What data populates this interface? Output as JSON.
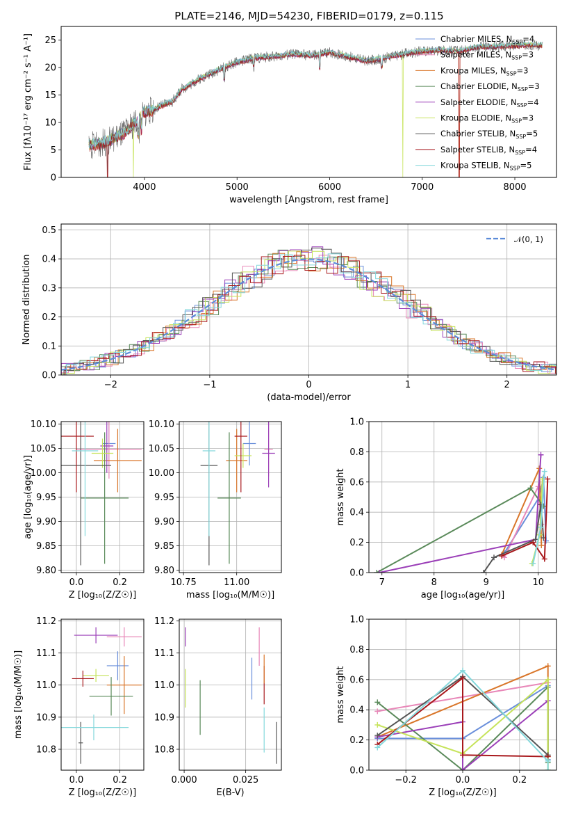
{
  "title": "PLATE=2146, MJD=54230, FIBERID=0179, z=0.115",
  "colors": {
    "Chabrier MILES": "#6a8fdb",
    "Salpeter MILES": "#e887b8",
    "Kroupa MILES": "#d9762a",
    "Chabrier ELODIE": "#5a8a5a",
    "Salpeter ELODIE": "#9b3fb8",
    "Kroupa ELODIE": "#c6e35a",
    "Chabrier STELIB": "#555555",
    "Salpeter STELIB": "#a8181c",
    "Kroupa STELIB": "#84d8dc"
  },
  "chart_data": [
    {
      "type": "line",
      "panel": "spectrum",
      "xlabel": "wavelength [Angstrom, rest frame]",
      "ylabel": "Flux [fλ10⁻¹⁷ erg cm⁻² s⁻¹ A⁻¹]",
      "xlim": [
        3100,
        8450
      ],
      "ylim": [
        0,
        27.5
      ],
      "xticks": [
        4000,
        5000,
        6000,
        7000,
        8000
      ],
      "yticks": [
        0,
        5,
        10,
        15,
        20,
        25
      ],
      "grid": false,
      "legend_position": "right",
      "envelope_x": [
        3400,
        3600,
        3800,
        4000,
        4100,
        4200,
        4300,
        4400,
        4500,
        4600,
        4800,
        5000,
        5200,
        5400,
        5600,
        5800,
        6000,
        6200,
        6400,
        6600,
        6800,
        7000,
        7200,
        7400,
        7600,
        7800,
        8000,
        8200,
        8300
      ],
      "envelope_y": [
        5.8,
        6.5,
        8.3,
        11.8,
        12.3,
        13.2,
        13.8,
        16.0,
        17.0,
        18.0,
        19.6,
        21.0,
        21.8,
        22.0,
        22.5,
        22.2,
        22.8,
        22.0,
        21.2,
        21.8,
        22.5,
        23.0,
        23.2,
        23.0,
        23.8,
        23.8,
        24.0,
        24.2,
        24.0
      ],
      "series": [
        {
          "name": "Chabrier MILES, N_SSP=4",
          "cut": [],
          "offset": 0.1
        },
        {
          "name": "Salpeter MILES, N_SSP=3",
          "cut": [],
          "offset": 0.05
        },
        {
          "name": "Kroupa MILES, N_SSP=3",
          "cut": [
            [
              7400,
              0
            ]
          ],
          "offset": -0.05
        },
        {
          "name": "Chabrier ELODIE, N_SSP=3",
          "cut": [],
          "offset": 0.0
        },
        {
          "name": "Salpeter ELODIE, N_SSP=4",
          "cut": [],
          "offset": -0.1
        },
        {
          "name": "Kroupa ELODIE, N_SSP=3",
          "cut": [
            [
              3880,
              0
            ],
            [
              6790,
              0
            ]
          ],
          "offset": 0.15
        },
        {
          "name": "Chabrier STELIB, N_SSP=5",
          "cut": [
            [
              3600,
              0
            ]
          ],
          "offset": 0.0,
          "noisy": true
        },
        {
          "name": "Salpeter STELIB, N_SSP=4",
          "cut": [
            [
              3600,
              0
            ],
            [
              7400,
              0
            ]
          ],
          "offset": -0.15
        },
        {
          "name": "Kroupa STELIB, N_SSP=5",
          "cut": [],
          "offset": 0.2
        }
      ]
    },
    {
      "type": "line",
      "panel": "residuals",
      "xlabel": "(data-model)/error",
      "ylabel": "Normed distribution",
      "xlim": [
        -2.5,
        2.5
      ],
      "ylim": [
        0,
        0.52
      ],
      "xticks": [
        -2,
        -1,
        0,
        1,
        2
      ],
      "yticks": [
        0.0,
        0.1,
        0.2,
        0.3,
        0.4,
        0.5
      ],
      "grid": true,
      "legend": [
        {
          "name": "𝒩(0, 1)",
          "style": "dashed"
        }
      ],
      "legend_position": "top-right",
      "bin_width": 0.1,
      "gaussian": {
        "mu": 0,
        "sigma": 1
      }
    },
    {
      "type": "scatter",
      "panel": "age-vs-Z",
      "xlabel": "Z [log₁₀(Z/Z☉)]",
      "ylabel": "age  [log₁₀(age/yr)]",
      "xlim": [
        -0.07,
        0.31
      ],
      "ylim": [
        9.795,
        10.105
      ],
      "xticks": [
        0.0,
        0.2
      ],
      "yticks": [
        9.8,
        9.85,
        9.9,
        9.95,
        10.0,
        10.05,
        10.1
      ],
      "grid": true,
      "points": [
        {
          "s": "Chabrier MILES",
          "x": 0.15,
          "xe": 0.03,
          "y": 10.06,
          "ye": 0.045
        },
        {
          "s": "Salpeter MILES",
          "x": 0.15,
          "xe": 0.15,
          "y": 10.048,
          "ye": 0.06
        },
        {
          "s": "Kroupa MILES",
          "x": 0.19,
          "xe": 0.11,
          "y": 10.025,
          "ye": 0.065
        },
        {
          "s": "Chabrier ELODIE",
          "x": 0.13,
          "xe": 0.11,
          "y": 9.948,
          "ye": 0.135
        },
        {
          "s": "Salpeter ELODIE",
          "x": 0.14,
          "xe": 0.03,
          "y": 10.055,
          "ye": 0.055
        },
        {
          "s": "Kroupa ELODIE",
          "x": 0.12,
          "xe": 0.05,
          "y": 10.04,
          "ye": 0.03
        },
        {
          "s": "Chabrier STELIB",
          "x": 0.02,
          "xe": 0.14,
          "y": 10.015,
          "ye": 0.205
        },
        {
          "s": "Salpeter STELIB",
          "x": 0.0,
          "xe": 0.08,
          "y": 10.075,
          "ye": 0.115
        },
        {
          "s": "Kroupa STELIB",
          "x": 0.04,
          "xe": 0.06,
          "y": 10.045,
          "ye": 0.175
        }
      ]
    },
    {
      "type": "scatter",
      "panel": "age-vs-mass",
      "xlabel": "mass [log₁₀(M/M☉)]",
      "ylabel": "",
      "xlim": [
        10.73,
        11.21
      ],
      "ylim": [
        9.795,
        10.105
      ],
      "xticks": [
        10.75,
        11.0
      ],
      "yticks": [
        9.8,
        9.85,
        9.9,
        9.95,
        10.0,
        10.05,
        10.1
      ],
      "grid": true,
      "points": [
        {
          "s": "Chabrier MILES",
          "x": 11.06,
          "xe": 0.03,
          "y": 10.06,
          "ye": 0.045
        },
        {
          "s": "Salpeter MILES",
          "x": 11.15,
          "xe": 0.02,
          "y": 10.048,
          "ye": 0.055
        },
        {
          "s": "Kroupa MILES",
          "x": 11.0,
          "xe": 0.05,
          "y": 10.025,
          "ye": 0.065
        },
        {
          "s": "Chabrier ELODIE",
          "x": 10.965,
          "xe": 0.055,
          "y": 9.948,
          "ye": 0.135
        },
        {
          "s": "Salpeter ELODIE",
          "x": 11.15,
          "xe": 0.03,
          "y": 10.04,
          "ye": 0.07
        },
        {
          "s": "Kroupa ELODIE",
          "x": 11.03,
          "xe": 0.04,
          "y": 10.035,
          "ye": 0.025
        },
        {
          "s": "Chabrier STELIB",
          "x": 10.87,
          "xe": 0.04,
          "y": 10.015,
          "ye": 0.205
        },
        {
          "s": "Salpeter STELIB",
          "x": 11.02,
          "xe": 0.03,
          "y": 10.075,
          "ye": 0.115
        },
        {
          "s": "Kroupa STELIB",
          "x": 10.87,
          "xe": 0.03,
          "y": 10.045,
          "ye": 0.175
        }
      ]
    },
    {
      "type": "line",
      "panel": "weight-vs-age",
      "xlabel": "age  [log₁₀(age/yr)]",
      "ylabel": "mass weight",
      "xlim": [
        6.75,
        10.35
      ],
      "ylim": [
        0,
        1
      ],
      "xticks": [
        7,
        8,
        9,
        10
      ],
      "yticks": [
        0.0,
        0.2,
        0.4,
        0.6,
        0.8,
        1.0
      ],
      "grid": true,
      "series": [
        {
          "s": "Chabrier MILES",
          "x": [
            9.35,
            10.02,
            10.1,
            10.15
          ],
          "y": [
            0.13,
            0.5,
            0.63,
            0.21
          ]
        },
        {
          "s": "Salpeter MILES",
          "x": [
            9.35,
            10.0,
            10.06
          ],
          "y": [
            0.1,
            0.57,
            0.32
          ]
        },
        {
          "s": "Kroupa MILES",
          "x": [
            9.3,
            10.02,
            10.06
          ],
          "y": [
            0.12,
            0.69,
            0.18
          ]
        },
        {
          "s": "Chabrier ELODIE",
          "x": [
            6.9,
            9.85,
            10.1
          ],
          "y": [
            0.0,
            0.56,
            0.44
          ]
        },
        {
          "s": "Salpeter ELODIE",
          "x": [
            6.95,
            9.95,
            10.05
          ],
          "y": [
            0.0,
            0.22,
            0.78
          ]
        },
        {
          "s": "Kroupa ELODIE",
          "x": [
            9.88,
            10.03,
            10.08
          ],
          "y": [
            0.06,
            0.25,
            0.62
          ]
        },
        {
          "s": "Chabrier STELIB",
          "x": [
            8.95,
            9.15,
            9.95,
            10.05,
            10.1
          ],
          "y": [
            0.0,
            0.1,
            0.22,
            0.45,
            0.23
          ]
        },
        {
          "s": "Salpeter STELIB",
          "x": [
            9.3,
            9.9,
            10.12,
            10.18
          ],
          "y": [
            0.11,
            0.2,
            0.09,
            0.62
          ]
        },
        {
          "s": "Kroupa STELIB",
          "x": [
            9.9,
            10.05,
            10.12
          ],
          "y": [
            0.06,
            0.3,
            0.67
          ]
        }
      ]
    },
    {
      "type": "scatter",
      "panel": "mass-vs-Z",
      "xlabel": "Z [log₁₀(Z/Z☉)]",
      "ylabel": "mass [log₁₀(M/M☉)]",
      "xlim": [
        -0.07,
        0.31
      ],
      "ylim": [
        10.735,
        11.205
      ],
      "xticks": [
        0.0,
        0.2
      ],
      "yticks": [
        10.8,
        10.9,
        11.0,
        11.1,
        11.2
      ],
      "grid": true,
      "points": [
        {
          "s": "Chabrier MILES",
          "x": 0.19,
          "xe": 0.05,
          "y": 11.06,
          "ye": 0.045
        },
        {
          "s": "Salpeter MILES",
          "x": 0.22,
          "xe": 0.08,
          "y": 11.15,
          "ye": 0.03
        },
        {
          "s": "Kroupa MILES",
          "x": 0.22,
          "xe": 0.08,
          "y": 11.0,
          "ye": 0.09
        },
        {
          "s": "Chabrier ELODIE",
          "x": 0.16,
          "xe": 0.1,
          "y": 10.965,
          "ye": 0.06
        },
        {
          "s": "Salpeter ELODIE",
          "x": 0.09,
          "xe": 0.1,
          "y": 11.155,
          "ye": 0.025
        },
        {
          "s": "Kroupa ELODIE",
          "x": 0.09,
          "xe": 0.06,
          "y": 11.03,
          "ye": 0.02
        },
        {
          "s": "Chabrier STELIB",
          "x": 0.02,
          "xe": 0.01,
          "y": 10.82,
          "ye": 0.065
        },
        {
          "s": "Salpeter STELIB",
          "x": 0.03,
          "xe": 0.05,
          "y": 11.02,
          "ye": 0.025
        },
        {
          "s": "Kroupa STELIB",
          "x": 0.08,
          "xe": 0.16,
          "y": 10.868,
          "ye": 0.04
        }
      ]
    },
    {
      "type": "scatter",
      "panel": "mass-vs-EBV",
      "xlabel": "E(B-V)",
      "ylabel": "",
      "xlim": [
        -0.002,
        0.0395
      ],
      "ylim": [
        10.735,
        11.205
      ],
      "xticks": [
        0.0,
        0.025
      ],
      "yticks": [
        10.8,
        10.9,
        11.0,
        11.1,
        11.2
      ],
      "grid": true,
      "points": [
        {
          "s": "Salpeter ELODIE",
          "x": 0.0005,
          "y": 11.15,
          "ye": 0.03
        },
        {
          "s": "Kroupa ELODIE",
          "x": 0.0005,
          "y": 10.99,
          "ye": 0.06
        },
        {
          "s": "Chabrier ELODIE",
          "x": 0.0065,
          "y": 10.93,
          "ye": 0.085
        },
        {
          "s": "Chabrier MILES",
          "x": 0.0275,
          "y": 11.02,
          "ye": 0.065
        },
        {
          "s": "Salpeter MILES",
          "x": 0.0305,
          "y": 11.12,
          "ye": 0.06
        },
        {
          "s": "Kroupa STELIB",
          "x": 0.0325,
          "y": 10.86,
          "ye": 0.07
        },
        {
          "s": "Salpeter STELIB",
          "x": 0.0325,
          "y": 11.0,
          "ye": 0.06
        },
        {
          "s": "Kroupa MILES",
          "x": 0.0325,
          "y": 11.05,
          "ye": 0.045
        },
        {
          "s": "Chabrier STELIB",
          "x": 0.0375,
          "y": 10.82,
          "ye": 0.065
        }
      ]
    },
    {
      "type": "line",
      "panel": "weight-vs-Z",
      "xlabel": "Z [log₁₀(Z/Z☉)]",
      "ylabel": "mass weight",
      "xlim": [
        -0.33,
        0.33
      ],
      "ylim": [
        0,
        1
      ],
      "xticks": [
        -0.2,
        0.0,
        0.2
      ],
      "yticks": [
        0.0,
        0.2,
        0.4,
        0.6,
        0.8,
        1.0
      ],
      "grid": true,
      "series": [
        {
          "s": "Chabrier MILES",
          "x": [
            -0.3,
            0.0,
            0.3,
            0.3
          ],
          "y": [
            0.21,
            0.21,
            0.56,
            0.07
          ]
        },
        {
          "s": "Salpeter MILES",
          "x": [
            -0.3,
            0.3
          ],
          "y": [
            0.39,
            0.58
          ]
        },
        {
          "s": "Kroupa MILES",
          "x": [
            -0.3,
            0.3,
            0.3
          ],
          "y": [
            0.22,
            0.69,
            0.09
          ]
        },
        {
          "s": "Chabrier ELODIE",
          "x": [
            -0.3,
            0.0,
            0.3,
            0.3
          ],
          "y": [
            0.45,
            0.0,
            0.55,
            0.05
          ]
        },
        {
          "s": "Salpeter ELODIE",
          "x": [
            -0.3,
            0.0,
            0.0,
            0.3
          ],
          "y": [
            0.22,
            0.32,
            0.0,
            0.46
          ]
        },
        {
          "s": "Kroupa ELODIE",
          "x": [
            -0.3,
            0.0,
            0.3,
            0.3
          ],
          "y": [
            0.3,
            0.11,
            0.6,
            0.0
          ]
        },
        {
          "s": "Chabrier STELIB",
          "x": [
            -0.3,
            0.0,
            0.3
          ],
          "y": [
            0.23,
            0.62,
            0.1
          ]
        },
        {
          "s": "Salpeter STELIB",
          "x": [
            -0.3,
            0.0,
            0.0,
            0.3
          ],
          "y": [
            0.17,
            0.61,
            0.1,
            0.09
          ]
        },
        {
          "s": "Kroupa STELIB",
          "x": [
            -0.3,
            0.0,
            0.3,
            0.3
          ],
          "y": [
            0.15,
            0.66,
            0.06,
            0.0
          ]
        }
      ]
    }
  ]
}
